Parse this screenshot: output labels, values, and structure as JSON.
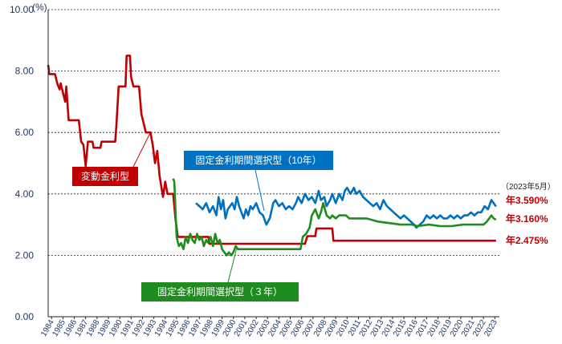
{
  "chart_data": {
    "type": "line",
    "yunit": "(%)",
    "ylim": [
      0,
      10
    ],
    "yticks": [
      "0.00",
      "2.00",
      "4.00",
      "6.00",
      "8.00",
      "10.00"
    ],
    "xlim": [
      1984,
      2023.7
    ],
    "xtick_labels": [
      "1984",
      "1985",
      "1986",
      "1987",
      "1988",
      "1989",
      "1990",
      "1991",
      "1992",
      "1993",
      "1994",
      "1995",
      "1996",
      "1997",
      "1998",
      "1999",
      "2000",
      "2001",
      "2002",
      "2003",
      "2004",
      "2005",
      "2006",
      "2007",
      "2008",
      "2009",
      "2010",
      "2011",
      "2012",
      "2013",
      "2014",
      "2015",
      "2016",
      "2017",
      "2018",
      "2019",
      "2020",
      "2021",
      "2022",
      "2023"
    ],
    "grid": true,
    "annotation": "（2023年5月）",
    "series": [
      {
        "name": "変動金利型",
        "color": "#c00000",
        "end_label": "年2.475%",
        "points": [
          [
            1984.0,
            8.2
          ],
          [
            1984.1,
            7.9
          ],
          [
            1984.6,
            7.9
          ],
          [
            1984.8,
            7.6
          ],
          [
            1985.0,
            7.4
          ],
          [
            1985.1,
            7.6
          ],
          [
            1985.3,
            7.3
          ],
          [
            1985.5,
            7.0
          ],
          [
            1985.6,
            7.5
          ],
          [
            1985.8,
            6.4
          ],
          [
            1986.7,
            6.4
          ],
          [
            1986.9,
            5.7
          ],
          [
            1987.1,
            5.6
          ],
          [
            1987.3,
            4.9
          ],
          [
            1987.5,
            5.7
          ],
          [
            1987.9,
            5.7
          ],
          [
            1988.0,
            5.5
          ],
          [
            1988.6,
            5.5
          ],
          [
            1988.7,
            5.7
          ],
          [
            1989.9,
            5.7
          ],
          [
            1990.0,
            6.2
          ],
          [
            1990.2,
            7.5
          ],
          [
            1990.8,
            7.5
          ],
          [
            1990.9,
            8.5
          ],
          [
            1991.2,
            8.5
          ],
          [
            1991.3,
            7.8
          ],
          [
            1991.5,
            7.5
          ],
          [
            1992.0,
            7.5
          ],
          [
            1992.2,
            6.6
          ],
          [
            1992.6,
            6.0
          ],
          [
            1993.0,
            6.0
          ],
          [
            1993.2,
            5.6
          ],
          [
            1993.4,
            5.0
          ],
          [
            1993.6,
            5.4
          ],
          [
            1993.8,
            4.6
          ],
          [
            1994.1,
            3.9
          ],
          [
            1994.3,
            4.4
          ],
          [
            1994.5,
            4.0
          ],
          [
            1995.0,
            4.0
          ],
          [
            1995.2,
            3.2
          ],
          [
            1995.4,
            2.6
          ],
          [
            1998.1,
            2.6
          ],
          [
            1998.2,
            2.375
          ],
          [
            2006.6,
            2.375
          ],
          [
            2006.8,
            2.625
          ],
          [
            2007.5,
            2.625
          ],
          [
            2007.6,
            2.875
          ],
          [
            2009.0,
            2.875
          ],
          [
            2009.1,
            2.475
          ],
          [
            2023.4,
            2.475
          ]
        ]
      },
      {
        "name": "固定金利期間選択型（10年）",
        "color": "#0070c0",
        "end_label": "年3.590%",
        "points": [
          [
            1997.0,
            3.7
          ],
          [
            1997.3,
            3.6
          ],
          [
            1997.6,
            3.5
          ],
          [
            1997.9,
            3.7
          ],
          [
            1998.2,
            3.4
          ],
          [
            1998.5,
            3.6
          ],
          [
            1998.8,
            3.3
          ],
          [
            1999.0,
            3.9
          ],
          [
            1999.2,
            3.5
          ],
          [
            1999.4,
            3.8
          ],
          [
            1999.6,
            3.2
          ],
          [
            1999.8,
            3.5
          ],
          [
            2000.0,
            3.6
          ],
          [
            2000.2,
            3.7
          ],
          [
            2000.4,
            3.5
          ],
          [
            2000.6,
            3.9
          ],
          [
            2000.8,
            3.6
          ],
          [
            2001.0,
            3.4
          ],
          [
            2001.2,
            3.2
          ],
          [
            2001.4,
            3.5
          ],
          [
            2001.6,
            3.3
          ],
          [
            2001.8,
            3.6
          ],
          [
            2002.0,
            3.5
          ],
          [
            2002.3,
            3.7
          ],
          [
            2002.6,
            3.4
          ],
          [
            2002.9,
            3.3
          ],
          [
            2003.2,
            3.0
          ],
          [
            2003.5,
            3.2
          ],
          [
            2003.8,
            3.7
          ],
          [
            2004.0,
            3.8
          ],
          [
            2004.3,
            3.6
          ],
          [
            2004.6,
            3.7
          ],
          [
            2004.9,
            3.5
          ],
          [
            2005.2,
            3.6
          ],
          [
            2005.5,
            3.5
          ],
          [
            2005.8,
            3.7
          ],
          [
            2006.0,
            3.9
          ],
          [
            2006.3,
            3.7
          ],
          [
            2006.6,
            4.0
          ],
          [
            2006.9,
            3.8
          ],
          [
            2007.2,
            3.9
          ],
          [
            2007.5,
            3.7
          ],
          [
            2007.8,
            4.1
          ],
          [
            2008.0,
            3.8
          ],
          [
            2008.3,
            3.9
          ],
          [
            2008.5,
            3.6
          ],
          [
            2008.8,
            3.8
          ],
          [
            2009.0,
            4.0
          ],
          [
            2009.3,
            3.7
          ],
          [
            2009.6,
            4.0
          ],
          [
            2009.9,
            3.8
          ],
          [
            2010.1,
            4.1
          ],
          [
            2010.3,
            4.2
          ],
          [
            2010.6,
            4.0
          ],
          [
            2010.9,
            4.2
          ],
          [
            2011.1,
            4.0
          ],
          [
            2011.4,
            4.1
          ],
          [
            2011.7,
            3.9
          ],
          [
            2012.0,
            3.8
          ],
          [
            2012.3,
            3.7
          ],
          [
            2012.6,
            3.6
          ],
          [
            2012.9,
            3.7
          ],
          [
            2013.2,
            3.5
          ],
          [
            2013.5,
            3.8
          ],
          [
            2013.8,
            3.6
          ],
          [
            2014.1,
            3.5
          ],
          [
            2014.4,
            3.4
          ],
          [
            2014.7,
            3.3
          ],
          [
            2015.0,
            3.2
          ],
          [
            2015.3,
            3.3
          ],
          [
            2015.6,
            3.2
          ],
          [
            2015.9,
            3.1
          ],
          [
            2016.2,
            3.0
          ],
          [
            2016.4,
            2.9
          ],
          [
            2016.7,
            3.0
          ],
          [
            2017.0,
            3.1
          ],
          [
            2017.3,
            3.3
          ],
          [
            2017.6,
            3.2
          ],
          [
            2017.9,
            3.3
          ],
          [
            2018.2,
            3.2
          ],
          [
            2018.5,
            3.3
          ],
          [
            2018.8,
            3.2
          ],
          [
            2019.1,
            3.2
          ],
          [
            2019.4,
            3.3
          ],
          [
            2019.7,
            3.2
          ],
          [
            2020.0,
            3.3
          ],
          [
            2020.3,
            3.2
          ],
          [
            2020.6,
            3.3
          ],
          [
            2020.9,
            3.3
          ],
          [
            2021.2,
            3.4
          ],
          [
            2021.5,
            3.3
          ],
          [
            2021.8,
            3.4
          ],
          [
            2022.1,
            3.4
          ],
          [
            2022.4,
            3.6
          ],
          [
            2022.7,
            3.5
          ],
          [
            2023.0,
            3.8
          ],
          [
            2023.2,
            3.7
          ],
          [
            2023.4,
            3.59
          ]
        ]
      },
      {
        "name": "固定金利期間選択型（３年）",
        "color": "#1e8c1e",
        "end_label": "年3.160%",
        "points": [
          [
            1995.0,
            4.5
          ],
          [
            1995.1,
            4.4
          ],
          [
            1995.3,
            2.6
          ],
          [
            1995.5,
            2.3
          ],
          [
            1995.7,
            2.4
          ],
          [
            1995.9,
            2.2
          ],
          [
            1996.1,
            2.6
          ],
          [
            1996.3,
            2.4
          ],
          [
            1996.5,
            2.7
          ],
          [
            1996.7,
            2.5
          ],
          [
            1996.9,
            2.4
          ],
          [
            1997.1,
            2.7
          ],
          [
            1997.3,
            2.5
          ],
          [
            1997.5,
            2.6
          ],
          [
            1997.7,
            2.3
          ],
          [
            1997.9,
            2.5
          ],
          [
            1998.1,
            2.4
          ],
          [
            1998.3,
            2.6
          ],
          [
            1998.5,
            2.3
          ],
          [
            1998.7,
            2.7
          ],
          [
            1998.9,
            2.4
          ],
          [
            1999.1,
            2.5
          ],
          [
            1999.3,
            2.2
          ],
          [
            1999.5,
            2.1
          ],
          [
            1999.7,
            2.0
          ],
          [
            1999.9,
            2.1
          ],
          [
            2000.1,
            2.0
          ],
          [
            2000.3,
            2.1
          ],
          [
            2000.5,
            2.3
          ],
          [
            2000.7,
            2.2
          ],
          [
            2000.9,
            2.2
          ],
          [
            2006.2,
            2.2
          ],
          [
            2006.4,
            2.6
          ],
          [
            2006.7,
            2.7
          ],
          [
            2007.0,
            2.9
          ],
          [
            2007.2,
            3.3
          ],
          [
            2007.5,
            3.5
          ],
          [
            2007.8,
            3.2
          ],
          [
            2008.0,
            3.4
          ],
          [
            2008.2,
            3.7
          ],
          [
            2008.5,
            3.3
          ],
          [
            2008.8,
            3.2
          ],
          [
            2009.0,
            3.3
          ],
          [
            2009.3,
            3.2
          ],
          [
            2009.6,
            3.3
          ],
          [
            2009.9,
            3.3
          ],
          [
            2010.2,
            3.3
          ],
          [
            2010.5,
            3.2
          ],
          [
            2011.0,
            3.2
          ],
          [
            2012.0,
            3.2
          ],
          [
            2013.0,
            3.1
          ],
          [
            2014.0,
            3.05
          ],
          [
            2015.0,
            3.0
          ],
          [
            2016.0,
            3.0
          ],
          [
            2016.5,
            2.95
          ],
          [
            2017.5,
            3.0
          ],
          [
            2018.5,
            2.95
          ],
          [
            2019.5,
            2.95
          ],
          [
            2020.5,
            3.0
          ],
          [
            2021.5,
            3.0
          ],
          [
            2022.3,
            3.0
          ],
          [
            2022.6,
            3.1
          ],
          [
            2023.0,
            3.3
          ],
          [
            2023.2,
            3.2
          ],
          [
            2023.4,
            3.16
          ]
        ]
      }
    ]
  }
}
